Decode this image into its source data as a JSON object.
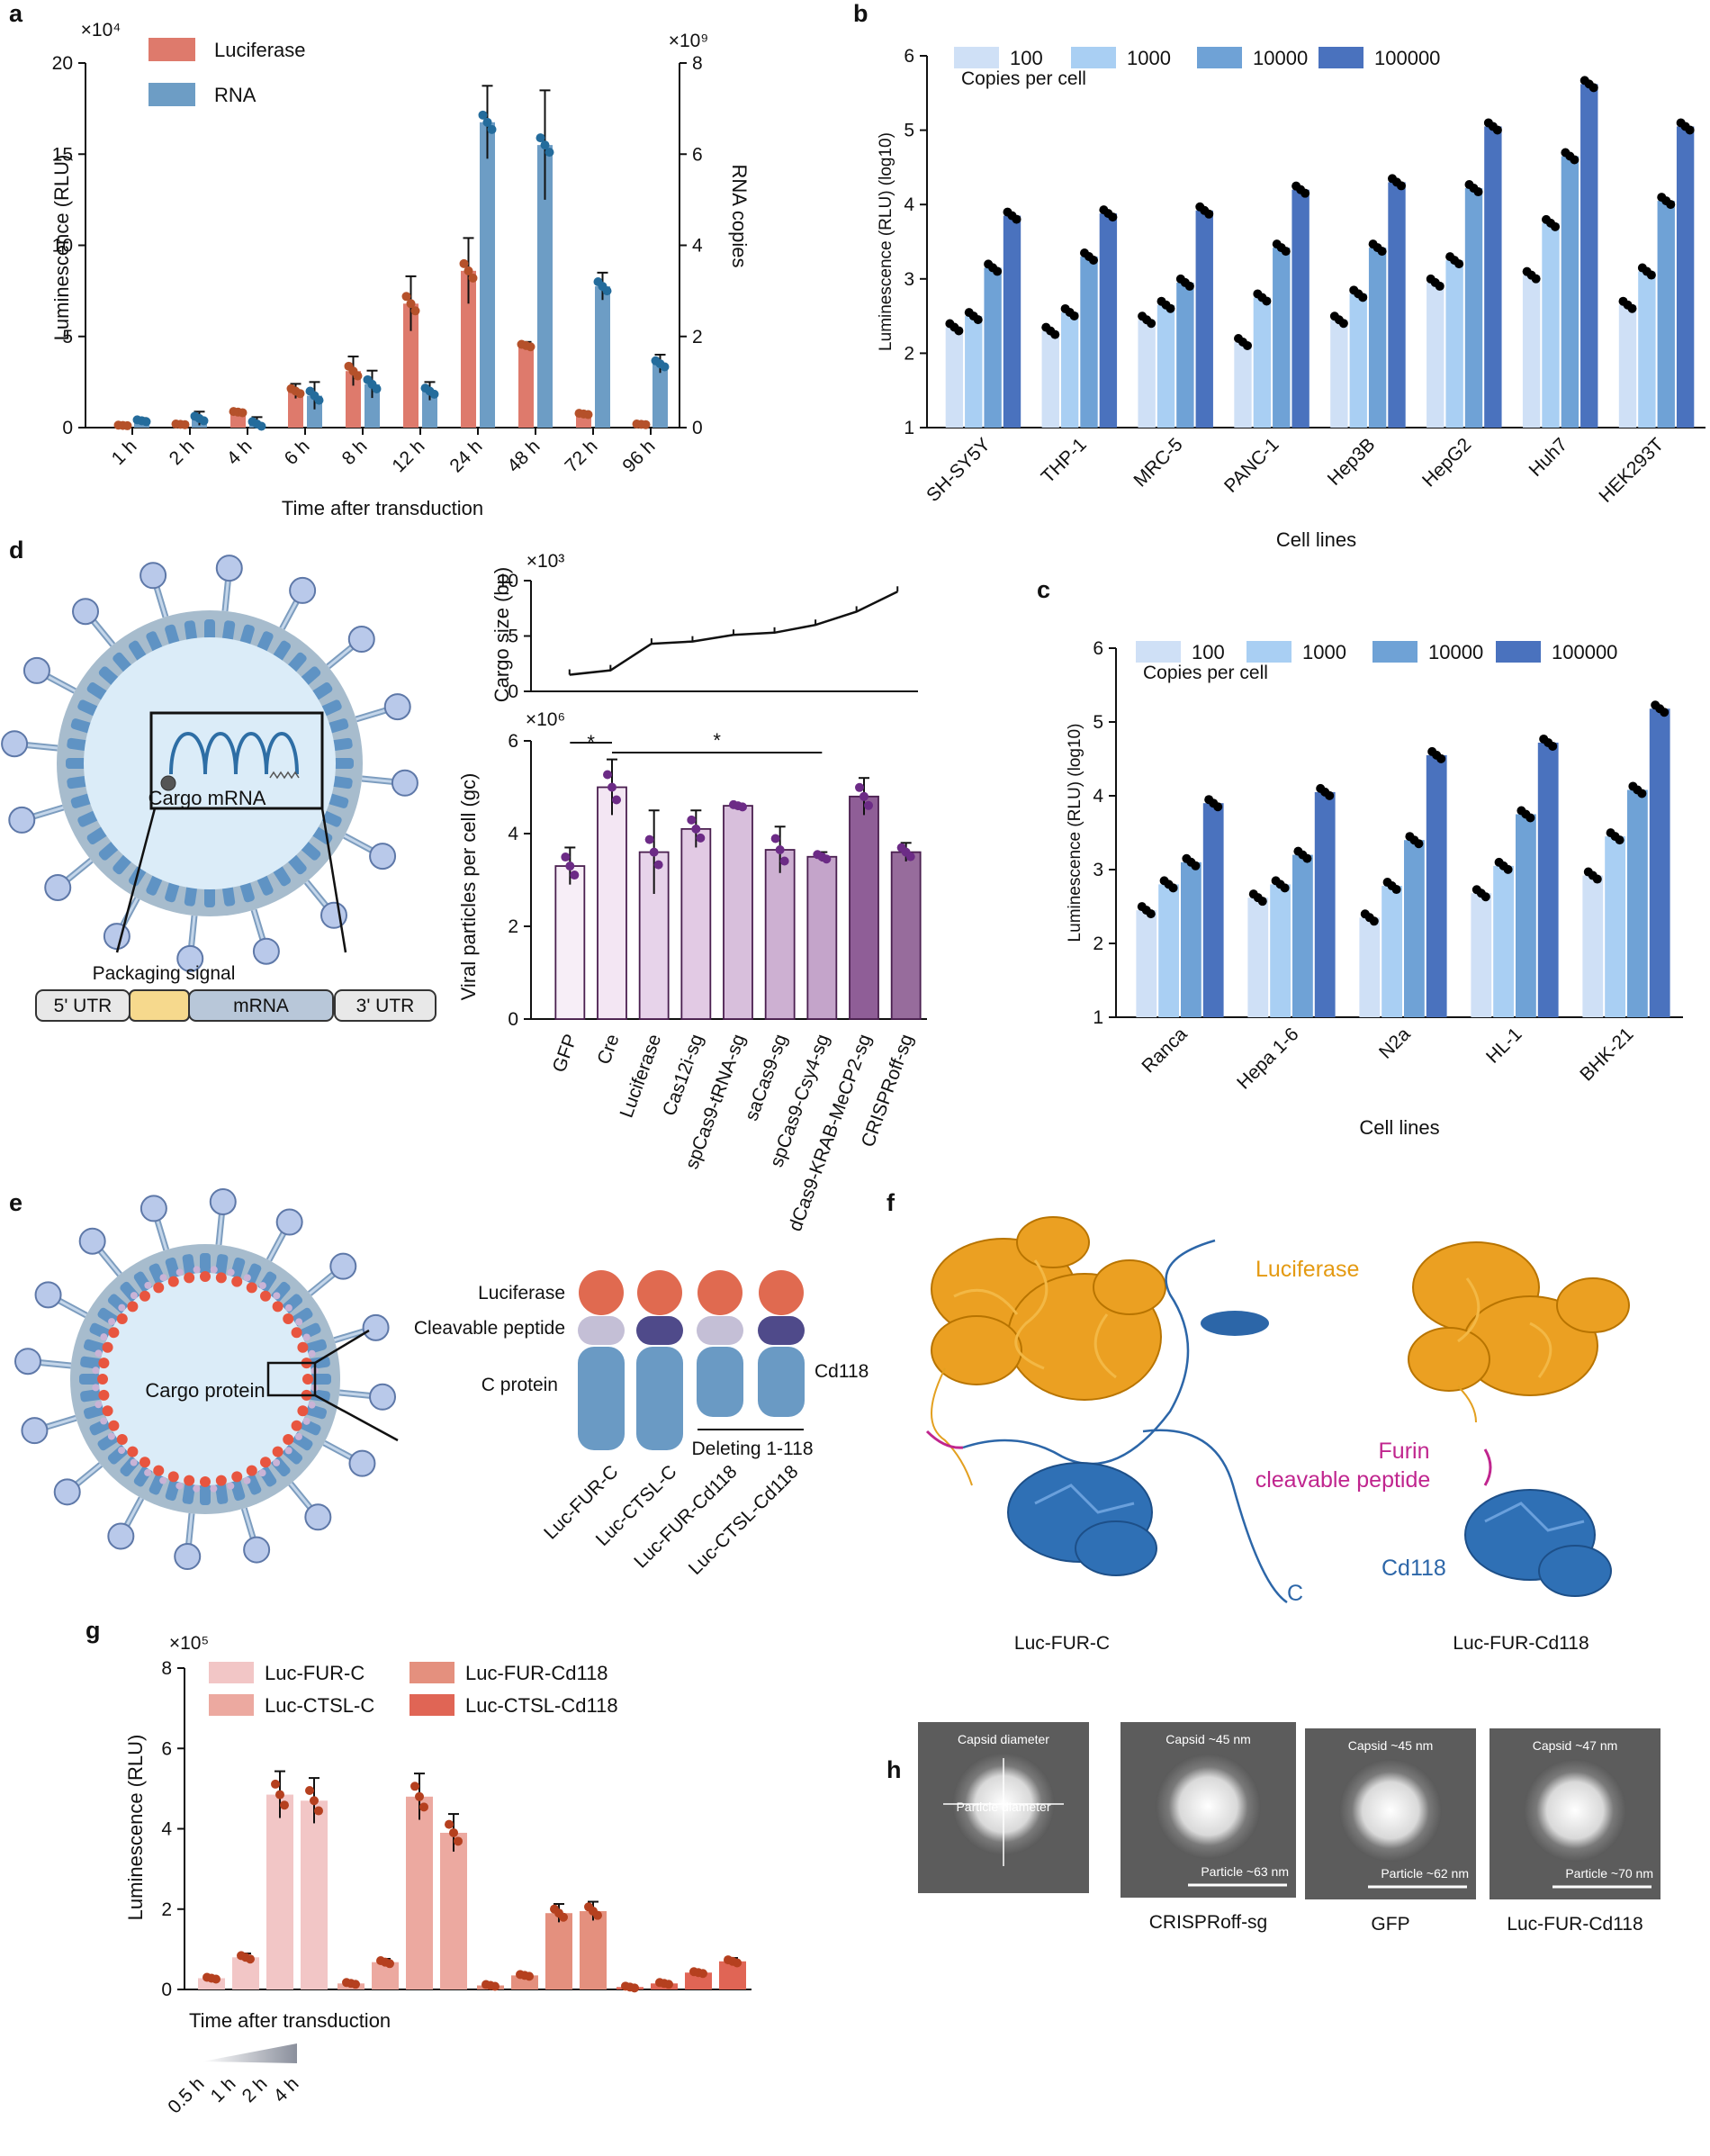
{
  "panel_labels": {
    "a": "a",
    "b": "b",
    "c": "c",
    "d": "d",
    "e": "e",
    "f": "f",
    "g": "g",
    "h": "h"
  },
  "chart_data": [
    {
      "id": "a",
      "type": "bar",
      "xlabel": "Time after transduction",
      "ylabel": "Luminescence (RLU)",
      "y2label": "RNA copies",
      "yexp": "×10⁴",
      "y2exp": "×10⁹",
      "ylim": [
        0,
        20
      ],
      "y2lim": [
        0,
        8
      ],
      "yticks": [
        "0",
        "5",
        "10",
        "15",
        "20"
      ],
      "y2ticks": [
        "0",
        "2",
        "4",
        "6",
        "8"
      ],
      "categories": [
        "1 h",
        "2 h",
        "4 h",
        "6 h",
        "8 h",
        "12 h",
        "24 h",
        "48 h",
        "72 h",
        "96 h"
      ],
      "series": [
        {
          "name": "Luciferase",
          "axis": "left",
          "color": "#de7a6c",
          "values": [
            0.12,
            0.18,
            0.85,
            2.0,
            3.1,
            6.8,
            8.6,
            4.5,
            0.75,
            0.18
          ],
          "errors": [
            0.05,
            0.05,
            0.1,
            0.4,
            0.8,
            1.5,
            1.8,
            0.2,
            0.1,
            0.05
          ]
        },
        {
          "name": "RNA",
          "axis": "right",
          "color": "#6d9dc5",
          "values": [
            0.15,
            0.2,
            0.08,
            0.7,
            0.95,
            0.8,
            6.7,
            6.2,
            3.1,
            1.4
          ],
          "errors": [
            0.06,
            0.15,
            0.15,
            0.3,
            0.3,
            0.2,
            0.8,
            1.2,
            0.3,
            0.2
          ]
        }
      ]
    },
    {
      "id": "b",
      "type": "bar",
      "xlabel": "Cell lines",
      "ylabel": "Luminescence (RLU) (log10)",
      "ylim": [
        1,
        6
      ],
      "yticks": [
        "1",
        "2",
        "3",
        "4",
        "5",
        "6"
      ],
      "legend_title": "Copies per cell",
      "categories": [
        "SH-SY5Y",
        "THP-1",
        "MRC-5",
        "PANC-1",
        "Hep3B",
        "HepG2",
        "Huh7",
        "HEK293T"
      ],
      "series": [
        {
          "name": "100",
          "color": "#cfe0f6",
          "values": [
            2.35,
            2.3,
            2.45,
            2.15,
            2.45,
            2.95,
            3.05,
            2.65
          ]
        },
        {
          "name": "1000",
          "color": "#a9cff3",
          "values": [
            2.5,
            2.55,
            2.65,
            2.75,
            2.8,
            3.25,
            3.75,
            3.1
          ]
        },
        {
          "name": "10000",
          "color": "#6fa2d6",
          "values": [
            3.15,
            3.3,
            2.95,
            3.42,
            3.42,
            4.22,
            4.65,
            4.05
          ]
        },
        {
          "name": "100000",
          "color": "#4a72be",
          "values": [
            3.85,
            3.88,
            3.92,
            4.2,
            4.3,
            5.05,
            5.62,
            5.05
          ]
        }
      ]
    },
    {
      "id": "c",
      "type": "bar",
      "xlabel": "Cell lines",
      "ylabel": "Luminescence (RLU) (log10)",
      "ylim": [
        1,
        6
      ],
      "yticks": [
        "1",
        "2",
        "3",
        "4",
        "5",
        "6"
      ],
      "legend_title": "Copies per cell",
      "categories": [
        "Ranca",
        "Hepa 1-6",
        "N2a",
        "HL-1",
        "BHK-21"
      ],
      "series": [
        {
          "name": "100",
          "color": "#cfe0f6",
          "values": [
            2.45,
            2.62,
            2.35,
            2.68,
            2.92
          ]
        },
        {
          "name": "1000",
          "color": "#a9cff3",
          "values": [
            2.8,
            2.8,
            2.78,
            3.05,
            3.45
          ]
        },
        {
          "name": "10000",
          "color": "#6fa2d6",
          "values": [
            3.1,
            3.2,
            3.4,
            3.75,
            4.08
          ]
        },
        {
          "name": "100000",
          "color": "#4a72be",
          "values": [
            3.9,
            4.05,
            4.55,
            4.72,
            5.18
          ]
        }
      ]
    },
    {
      "id": "d_top",
      "type": "line",
      "ylabel": "Cargo size (bp)",
      "yexp": "×10³",
      "ylim": [
        0,
        10
      ],
      "yticks": [
        "0",
        "5",
        "10"
      ],
      "values": [
        1.5,
        1.9,
        4.3,
        4.5,
        5.1,
        5.3,
        6.0,
        7.2,
        9.0
      ]
    },
    {
      "id": "d",
      "type": "bar",
      "ylabel": "Viral particles per cell (gc)",
      "yexp": "×10⁶",
      "ylim": [
        0,
        6
      ],
      "yticks": [
        "0",
        "2",
        "4",
        "6"
      ],
      "categories": [
        "GFP",
        "Cre",
        "Luciferase",
        "Cas12i-sg",
        "spCas9-tRNA-sg",
        "saCas9-sg",
        "spCas9-Csy4-sg",
        "dCas9-KRAB-MeCP2-sg",
        "CRISPRoff-sg"
      ],
      "values": [
        3.3,
        5.0,
        3.6,
        4.1,
        4.6,
        3.65,
        3.5,
        4.8,
        3.6
      ],
      "errors": [
        0.4,
        0.6,
        0.9,
        0.4,
        0.05,
        0.5,
        0.1,
        0.4,
        0.2
      ],
      "colors": [
        "#f7eef7",
        "#f3e6f3",
        "#e7d3ea",
        "#e2cae4",
        "#d8bfdc",
        "#cdb0d2",
        "#c4a4ca",
        "#8f5e97",
        "#976c9c"
      ],
      "annotations": [
        "*",
        "*"
      ]
    },
    {
      "id": "g",
      "type": "bar",
      "ylabel": "Luminescence (RLU)",
      "yexp": "×10⁵",
      "xlabel": "Time after transduction",
      "ylim": [
        0,
        8
      ],
      "yticks": [
        "0",
        "2",
        "4",
        "6",
        "8"
      ],
      "categories": [
        "0.5 h",
        "1 h",
        "2 h",
        "4 h"
      ],
      "series": [
        {
          "name": "Luc-FUR-C",
          "color": "#f2c6c6",
          "values": [
            0.28,
            0.8,
            4.85,
            4.7
          ]
        },
        {
          "name": "Luc-CTSL-C",
          "color": "#eca9a0",
          "values": [
            0.15,
            0.68,
            4.8,
            3.9
          ]
        },
        {
          "name": "Luc-FUR-Cd118",
          "color": "#e4907e",
          "values": [
            0.1,
            0.35,
            1.9,
            1.95
          ]
        },
        {
          "name": "Luc-CTSL-Cd118",
          "color": "#e06555",
          "values": [
            0.06,
            0.15,
            0.42,
            0.7
          ]
        }
      ]
    }
  ],
  "diagram_d": {
    "cargo_label": "Cargo mRNA",
    "packaging_label": "Packaging signal",
    "segments": [
      "5' UTR",
      "",
      "mRNA",
      "3' UTR"
    ]
  },
  "diagram_e": {
    "cargo_label": "Cargo protein",
    "row_labels": [
      "Luciferase",
      "Cleavable peptide",
      "C protein"
    ],
    "cd118_label": "Cd118",
    "deleting_label": "Deleting 1-118",
    "constructs": [
      "Luc-FUR-C",
      "Luc-CTSL-C",
      "Luc-FUR-Cd118",
      "Luc-CTSL-Cd118"
    ]
  },
  "panel_f": {
    "luciferase": "Luciferase",
    "furin1": "Furin",
    "furin2": "cleavable peptide",
    "c_label": "C",
    "cd118": "Cd118",
    "left_caption": "Luc-FUR-C",
    "right_caption": "Luc-FUR-Cd118"
  },
  "panel_h": {
    "tiles": [
      {
        "top": "Capsid diameter",
        "bottom": "Particle diameter",
        "caption": ""
      },
      {
        "top": "Capsid ~45 nm",
        "bottom": "Particle ~63 nm",
        "caption": "CRISPRoff-sg"
      },
      {
        "top": "Capsid ~45 nm",
        "bottom": "Particle ~62 nm",
        "caption": "GFP"
      },
      {
        "top": "Capsid ~47 nm",
        "bottom": "Particle ~70 nm",
        "caption": "Luc-FUR-Cd118"
      }
    ]
  }
}
